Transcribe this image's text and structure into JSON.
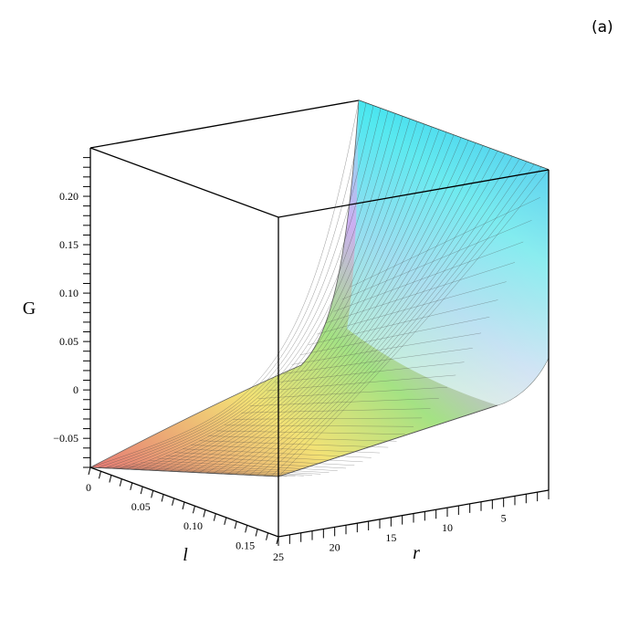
{
  "panel_label": "(a)",
  "chart_data": {
    "type": "surface3d",
    "title": "",
    "axes": {
      "z": {
        "label": "G",
        "range": [
          -0.08,
          0.25
        ],
        "ticks": [
          "0.20",
          "0.15",
          "0.10",
          "0.05",
          "0",
          "−0.05"
        ],
        "tick_values": [
          0.2,
          0.15,
          0.1,
          0.05,
          0.0,
          -0.05
        ]
      },
      "l": {
        "label": "l",
        "range": [
          0,
          0.18
        ],
        "ticks": [
          "0",
          "0.05",
          "0.10",
          "0.15"
        ],
        "tick_values": [
          0,
          0.05,
          0.1,
          0.15
        ]
      },
      "r": {
        "label": "r",
        "range": [
          1,
          25
        ],
        "ticks": [
          "25",
          "20",
          "15",
          "10",
          "5"
        ],
        "tick_values": [
          25,
          20,
          15,
          10,
          5
        ]
      }
    },
    "corner_values": [
      {
        "l": 0.0,
        "r": 1,
        "G": 0.25
      },
      {
        "l": 0.18,
        "r": 1,
        "G": 0.22
      },
      {
        "l": 0.0,
        "r": 25,
        "G": -0.08
      },
      {
        "l": 0.18,
        "r": 25,
        "G": -0.09
      }
    ],
    "colormap": [
      "red",
      "yellow",
      "green",
      "cyan",
      "blue",
      "magenta"
    ],
    "box": true,
    "grid_lines_on_surface": true
  }
}
